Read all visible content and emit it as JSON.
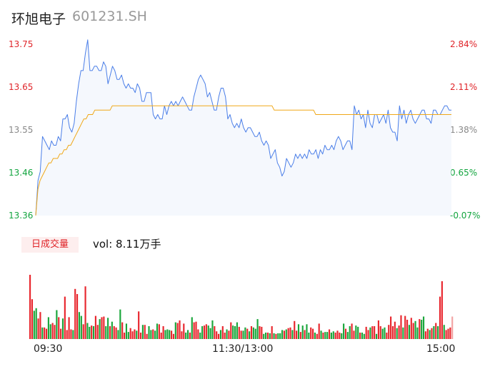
{
  "stock": {
    "name": "环旭电子",
    "code": "601231.SH"
  },
  "chart_data": {
    "type": "line",
    "price_axis": {
      "labels": [
        "13.75",
        "13.65",
        "13.55",
        "13.46",
        "13.36"
      ],
      "label_colors": [
        "#e0252a",
        "#e0252a",
        "#888888",
        "#13a53f",
        "#13a53f"
      ],
      "ylim": [
        13.36,
        13.75
      ]
    },
    "percent_axis": {
      "labels": [
        "2.84%",
        "2.11%",
        "1.38%",
        "0.65%",
        "-0.07%"
      ],
      "label_colors": [
        "#e0252a",
        "#e0252a",
        "#888888",
        "#13a53f",
        "#13a53f"
      ]
    },
    "x_tick_labels": [
      "09:30",
      "11:30/13:00",
      "15:00"
    ],
    "series": [
      {
        "color": "#4a7ee8",
        "values": [
          13.36,
          13.44,
          13.46,
          13.54,
          13.53,
          13.52,
          13.51,
          13.53,
          13.52,
          13.52,
          13.54,
          13.53,
          13.58,
          13.58,
          13.59,
          13.56,
          13.55,
          13.57,
          13.62,
          13.66,
          13.69,
          13.69,
          13.73,
          13.76,
          13.69,
          13.69,
          13.7,
          13.7,
          13.69,
          13.69,
          13.71,
          13.7,
          13.66,
          13.68,
          13.7,
          13.69,
          13.67,
          13.67,
          13.68,
          13.66,
          13.65,
          13.66,
          13.65,
          13.65,
          13.64,
          13.66,
          13.65,
          13.62,
          13.62,
          13.64,
          13.64,
          13.64,
          13.59,
          13.58,
          13.59,
          13.58,
          13.58,
          13.61,
          13.59,
          13.61,
          13.62,
          13.61,
          13.62,
          13.61,
          13.62,
          13.63,
          13.62,
          13.61,
          13.6,
          13.6,
          13.63,
          13.65,
          13.67,
          13.68,
          13.67,
          13.66,
          13.63,
          13.64,
          13.62,
          13.6,
          13.6,
          13.63,
          13.65,
          13.65,
          13.63,
          13.58,
          13.59,
          13.57,
          13.56,
          13.57,
          13.56,
          13.58,
          13.56,
          13.55,
          13.56,
          13.56,
          13.55,
          13.54,
          13.54,
          13.55,
          13.53,
          13.52,
          13.53,
          13.52,
          13.49,
          13.5,
          13.51,
          13.48,
          13.47,
          13.45,
          13.46,
          13.49,
          13.48,
          13.47,
          13.48,
          13.5,
          13.49,
          13.5,
          13.49,
          13.5,
          13.49,
          13.51,
          13.5,
          13.5,
          13.51,
          13.49,
          13.51,
          13.5,
          13.52,
          13.51,
          13.51,
          13.52,
          13.51,
          13.53,
          13.54,
          13.53,
          13.51,
          13.52,
          13.53,
          13.53,
          13.51,
          13.61,
          13.59,
          13.6,
          13.58,
          13.59,
          13.56,
          13.6,
          13.57,
          13.56,
          13.59,
          13.59,
          13.57,
          13.58,
          13.59,
          13.57,
          13.6,
          13.56,
          13.55,
          13.55,
          13.53,
          13.61,
          13.58,
          13.6,
          13.57,
          13.59,
          13.6,
          13.58,
          13.57,
          13.58,
          13.59,
          13.6,
          13.6,
          13.58,
          13.58,
          13.57,
          13.6,
          13.6,
          13.59,
          13.59,
          13.6,
          13.61,
          13.61,
          13.6,
          13.6
        ],
        "__comment": null
      },
      {
        "color": "#f0a818",
        "values": [
          13.36,
          13.42,
          13.44,
          13.45,
          13.46,
          13.47,
          13.48,
          13.48,
          13.49,
          13.49,
          13.49,
          13.5,
          13.5,
          13.51,
          13.51,
          13.52,
          13.52,
          13.53,
          13.54,
          13.55,
          13.56,
          13.57,
          13.58,
          13.58,
          13.59,
          13.59,
          13.59,
          13.6,
          13.6,
          13.6,
          13.6,
          13.6,
          13.6,
          13.6,
          13.6,
          13.61,
          13.61,
          13.61,
          13.61,
          13.61,
          13.61,
          13.61,
          13.61,
          13.61,
          13.61,
          13.61,
          13.61,
          13.61,
          13.61,
          13.61,
          13.61,
          13.61,
          13.61,
          13.61,
          13.61,
          13.61,
          13.61,
          13.61,
          13.61,
          13.61,
          13.61,
          13.61,
          13.61,
          13.61,
          13.61,
          13.61,
          13.61,
          13.61,
          13.61,
          13.61,
          13.61,
          13.61,
          13.61,
          13.61,
          13.61,
          13.61,
          13.61,
          13.61,
          13.61,
          13.61,
          13.61,
          13.61,
          13.61,
          13.61,
          13.61,
          13.61,
          13.61,
          13.61,
          13.61,
          13.61,
          13.61,
          13.61,
          13.61,
          13.61,
          13.61,
          13.61,
          13.61,
          13.61,
          13.61,
          13.61,
          13.61,
          13.61,
          13.61,
          13.61,
          13.61,
          13.61,
          13.61,
          13.61,
          13.61,
          13.6,
          13.6,
          13.6,
          13.6,
          13.6,
          13.6,
          13.6,
          13.6,
          13.6,
          13.6,
          13.6,
          13.6,
          13.6,
          13.6,
          13.6,
          13.6,
          13.6,
          13.6,
          13.6,
          13.59,
          13.59,
          13.59,
          13.59,
          13.59,
          13.59,
          13.59,
          13.59,
          13.59,
          13.59,
          13.59,
          13.59,
          13.59,
          13.59,
          13.59,
          13.59,
          13.59,
          13.59,
          13.59,
          13.59,
          13.59,
          13.59,
          13.59,
          13.59,
          13.59,
          13.59,
          13.59,
          13.59,
          13.59,
          13.59,
          13.59,
          13.59,
          13.59,
          13.59,
          13.59,
          13.59,
          13.59,
          13.59,
          13.59,
          13.59,
          13.59,
          13.59,
          13.59,
          13.59,
          13.59,
          13.59,
          13.59,
          13.59,
          13.59,
          13.59,
          13.59,
          13.59,
          13.59,
          13.59,
          13.59,
          13.59,
          13.59,
          13.59,
          13.59,
          13.59,
          13.59,
          13.59,
          13.59
        ]
      }
    ],
    "volume": {
      "label": "日成交量",
      "summary": "vol: 8.11万手",
      "colors": {
        "up": "#e8262d",
        "down": "#1aa63b",
        "last": "#f2a3a3"
      },
      "values": [
        100,
        62,
        44,
        48,
        32,
        42,
        18,
        18,
        16,
        34,
        23,
        25,
        22,
        45,
        34,
        16,
        32,
        66,
        14,
        34,
        15,
        14,
        78,
        70,
        42,
        36,
        23,
        82,
        25,
        19,
        21,
        20,
        36,
        22,
        31,
        34,
        35,
        20,
        33,
        20,
        27,
        20,
        18,
        14,
        46,
        26,
        10,
        24,
        11,
        17,
        12,
        15,
        13,
        43,
        10,
        22,
        22,
        8,
        20,
        14,
        15,
        13,
        24,
        23,
        10,
        20,
        14,
        15,
        14,
        13,
        8,
        26,
        25,
        29,
        12,
        24,
        10,
        14,
        10,
        34,
        26,
        27,
        15,
        10,
        20,
        21,
        23,
        21,
        17,
        29,
        20,
        12,
        8,
        14,
        20,
        10,
        15,
        13,
        26,
        21,
        20,
        26,
        19,
        13,
        13,
        18,
        16,
        12,
        20,
        18,
        16,
        31,
        20,
        19,
        8,
        10,
        10,
        9,
        20,
        9,
        8,
        9,
        9,
        14,
        13,
        15,
        17,
        18,
        14,
        28,
        13,
        23,
        11,
        21,
        14,
        23,
        10,
        18,
        16,
        10,
        8,
        24,
        13,
        10,
        11,
        11,
        15,
        10,
        12,
        10,
        13,
        10,
        9,
        24,
        16,
        11,
        20,
        24,
        13,
        21,
        19,
        10,
        10,
        8,
        19,
        14,
        18,
        20,
        20,
        8,
        29,
        20,
        16,
        18,
        10,
        22,
        35,
        20,
        27,
        17,
        21,
        37,
        18,
        36,
        30,
        22,
        33,
        25,
        28,
        18,
        31,
        30,
        35,
        12,
        16,
        14,
        17,
        20,
        25,
        20,
        66,
        90,
        22,
        14,
        16,
        18,
        35
      ],
      "directions": "uudduuduudduuduuduuuuduudduudduduuduudduduudduudduuuduuduuddudduuuddduuduuuudduduuudduuddduuuduuduuddduuddududdduuddudududdduduuduudududduuduududdudduuuddudduuddudduuduuduudduuuuuduuduuduuddudduudududuuduuudududuuuudd"
    }
  }
}
